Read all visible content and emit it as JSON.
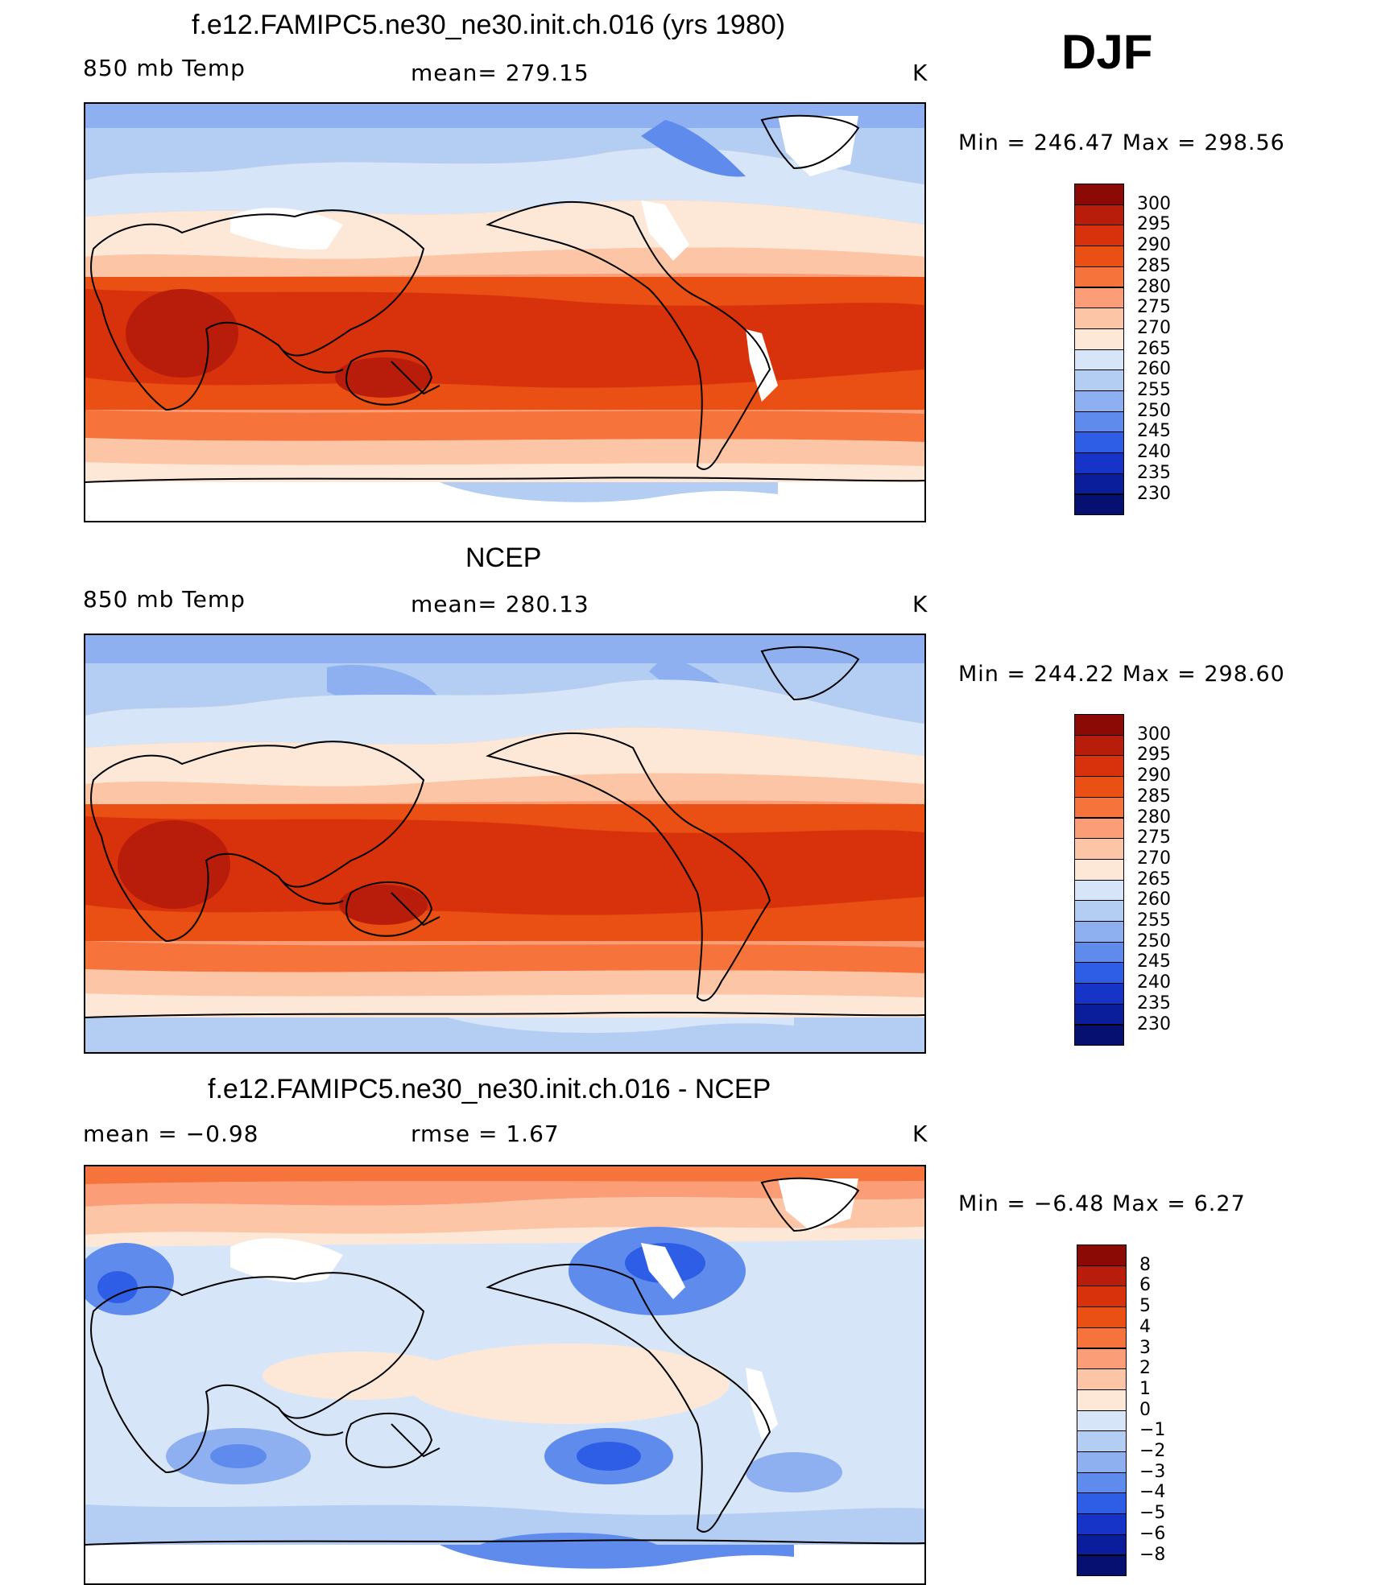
{
  "header": {
    "season": "DJF"
  },
  "panels": [
    {
      "title": "f.e12.FAMIPC5.ne30_ne30.init.ch.016 (yrs 1980)",
      "left": "850 mb Temp",
      "center": "mean= 279.15",
      "right": "K",
      "minmax": "Min = 246.47 Max = 298.56",
      "kind": "model"
    },
    {
      "title": "NCEP",
      "left": "850 mb Temp",
      "center": "mean= 280.13",
      "right": "K",
      "minmax": "Min = 244.22 Max = 298.60",
      "kind": "obs"
    },
    {
      "title": "f.e12.FAMIPC5.ne30_ne30.init.ch.016 - NCEP",
      "left": "mean =   −0.98",
      "center": "rmse =    1.67",
      "right": "K",
      "minmax": "Min =   −6.48 Max =    6.27",
      "kind": "diff"
    }
  ],
  "colorbars": {
    "temp": {
      "labels": [
        "300",
        "295",
        "290",
        "285",
        "280",
        "275",
        "270",
        "265",
        "260",
        "255",
        "250",
        "245",
        "240",
        "235",
        "230"
      ],
      "colors": [
        "#8b0a06",
        "#b81c0a",
        "#d8320c",
        "#ea4f14",
        "#f6733c",
        "#fb9e78",
        "#fcc6a6",
        "#fde8d8",
        "#d6e6f8",
        "#b3cdf3",
        "#8eb0f0",
        "#5f8cec",
        "#2e5ee6",
        "#1634c8",
        "#0a1e9c",
        "#061070"
      ]
    },
    "diff": {
      "labels": [
        "8",
        "6",
        "5",
        "4",
        "3",
        "2",
        "1",
        "0",
        "−1",
        "−2",
        "−3",
        "−4",
        "−5",
        "−6",
        "−8"
      ],
      "colors": [
        "#8b0a06",
        "#b81c0a",
        "#d8320c",
        "#ea4f14",
        "#f6733c",
        "#fb9e78",
        "#fcc6a6",
        "#fde8d8",
        "#d6e6f8",
        "#b3cdf3",
        "#8eb0f0",
        "#5f8cec",
        "#2e5ee6",
        "#1634c8",
        "#0a1e9c",
        "#061070"
      ]
    }
  }
}
